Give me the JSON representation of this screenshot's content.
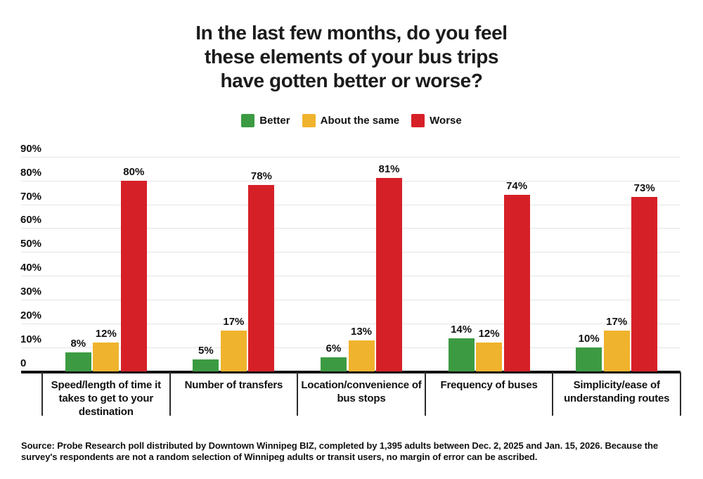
{
  "title_lines": [
    "In the last few months, do you feel",
    "these elements of your bus trips",
    "have gotten better or worse?"
  ],
  "source_text": "Source: Probe Research poll distributed by Downtown Winnipeg BIZ, completed by 1,395 adults between Dec. 2, 2025 and Jan. 15, 2026. Because the survey's respondents are not a random selection of Winnipeg adults or transit users, no margin of error can be ascribed.",
  "colors": {
    "better": "#3c9b42",
    "about_the_same": "#f0b32d",
    "worse": "#d62027",
    "gridline": "#e4e4e4",
    "axis_line": "#121212",
    "text": "#111111"
  },
  "chart_data": {
    "type": "bar",
    "title": "In the last few months, do you feel these elements of your bus trips have gotten better or worse?",
    "categories": [
      "Speed/length of time it takes to get to your destination",
      "Number of transfers",
      "Location/convenience of bus stops",
      "Frequency of buses",
      "Simplicity/ease of understanding routes"
    ],
    "series": [
      {
        "name": "Better",
        "color": "#3c9b42",
        "values": [
          8,
          5,
          6,
          14,
          10
        ]
      },
      {
        "name": "About the same",
        "color": "#f0b32d",
        "values": [
          12,
          17,
          13,
          12,
          17
        ]
      },
      {
        "name": "Worse",
        "color": "#d62027",
        "values": [
          80,
          78,
          81,
          74,
          73
        ]
      }
    ],
    "value_suffix": "%",
    "ylim": [
      0,
      90
    ],
    "yticks": [
      {
        "label": "90%",
        "value": 90
      },
      {
        "label": "80%",
        "value": 80
      },
      {
        "label": "70%",
        "value": 70
      },
      {
        "label": "60%",
        "value": 60
      },
      {
        "label": "50%",
        "value": 50
      },
      {
        "label": "40%",
        "value": 40
      },
      {
        "label": "30%",
        "value": 30
      },
      {
        "label": "20%",
        "value": 20
      },
      {
        "label": "10%",
        "value": 10
      },
      {
        "label": "0",
        "value": 0
      }
    ],
    "grid": true,
    "legend_position": "top",
    "xlabel": "",
    "ylabel": ""
  }
}
